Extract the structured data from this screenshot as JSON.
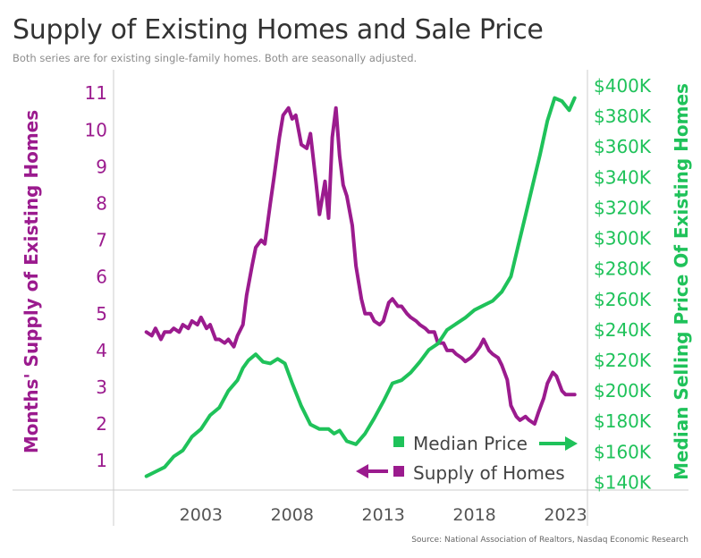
{
  "title": "Supply of Existing Homes and Sale Price",
  "subtitle": "Both series are for existing single-family homes. Both are seasonally adjusted.",
  "source": "Source: National Association of Realtors, Nasdaq Economic Research",
  "colors": {
    "supply": "#9b1b8e",
    "price": "#1fc25a",
    "axis": "#cccccc"
  },
  "chart_data": {
    "type": "line",
    "xlabel": "",
    "ylabel_left": "Months' Supply of Existing Homes",
    "ylabel_right": "Median Selling Price Of Existing Homes",
    "x_ticks": [
      2003,
      2008,
      2013,
      2018,
      2023
    ],
    "xlim": [
      1998.2,
      2024.2
    ],
    "y_left_ticks": [
      "1",
      "2",
      "3",
      "4",
      "5",
      "6",
      "7",
      "8",
      "9",
      "10",
      "11"
    ],
    "y_left_lim": [
      0.2,
      11.2
    ],
    "y_right_ticks": [
      "$140K",
      "$160K",
      "$180K",
      "$200K",
      "$220K",
      "$240K",
      "$260K",
      "$280K",
      "$300K",
      "$320K",
      "$340K",
      "$360K",
      "$380K",
      "$400K"
    ],
    "y_right_lim": [
      135000,
      400000
    ],
    "grid": false,
    "legend": [
      {
        "name": "Median Price",
        "axis": "right",
        "arrow": "right"
      },
      {
        "name": "Supply of Homes",
        "axis": "left",
        "arrow": "left"
      }
    ],
    "series": [
      {
        "name": "Supply of Homes",
        "axis": "left",
        "x": [
          2000.0,
          2000.3,
          2000.5,
          2000.8,
          2001.0,
          2001.3,
          2001.5,
          2001.8,
          2002.0,
          2002.3,
          2002.5,
          2002.8,
          2003.0,
          2003.3,
          2003.5,
          2003.8,
          2004.0,
          2004.3,
          2004.5,
          2004.8,
          2005.0,
          2005.3,
          2005.5,
          2005.8,
          2006.0,
          2006.3,
          2006.5,
          2006.8,
          2007.0,
          2007.3,
          2007.5,
          2007.8,
          2008.0,
          2008.2,
          2008.5,
          2008.8,
          2009.0,
          2009.3,
          2009.5,
          2009.8,
          2010.0,
          2010.2,
          2010.4,
          2010.6,
          2010.8,
          2011.0,
          2011.3,
          2011.5,
          2011.8,
          2012.0,
          2012.3,
          2012.5,
          2012.8,
          2013.0,
          2013.3,
          2013.5,
          2013.8,
          2014.0,
          2014.3,
          2014.5,
          2014.8,
          2015.0,
          2015.3,
          2015.5,
          2015.8,
          2016.0,
          2016.3,
          2016.5,
          2016.8,
          2017.0,
          2017.3,
          2017.5,
          2017.8,
          2018.0,
          2018.3,
          2018.5,
          2018.8,
          2019.0,
          2019.3,
          2019.5,
          2019.8,
          2020.0,
          2020.3,
          2020.5,
          2020.8,
          2021.0,
          2021.3,
          2021.5,
          2021.8,
          2022.0,
          2022.3,
          2022.5,
          2022.8,
          2023.0,
          2023.3,
          2023.5
        ],
        "values": [
          4.5,
          4.4,
          4.6,
          4.3,
          4.5,
          4.5,
          4.6,
          4.5,
          4.7,
          4.6,
          4.8,
          4.7,
          4.9,
          4.6,
          4.7,
          4.3,
          4.3,
          4.2,
          4.3,
          4.1,
          4.4,
          4.7,
          5.5,
          6.3,
          6.8,
          7.0,
          6.9,
          8.0,
          8.7,
          9.8,
          10.4,
          10.6,
          10.3,
          10.4,
          9.6,
          9.5,
          9.9,
          8.6,
          7.7,
          8.6,
          7.6,
          9.8,
          10.6,
          9.3,
          8.5,
          8.2,
          7.4,
          6.3,
          5.4,
          5.0,
          5.0,
          4.8,
          4.7,
          4.8,
          5.3,
          5.4,
          5.2,
          5.2,
          5.0,
          4.9,
          4.8,
          4.7,
          4.6,
          4.5,
          4.5,
          4.2,
          4.2,
          4.0,
          4.0,
          3.9,
          3.8,
          3.7,
          3.8,
          3.9,
          4.1,
          4.3,
          4.0,
          3.9,
          3.8,
          3.6,
          3.2,
          2.5,
          2.2,
          2.1,
          2.2,
          2.1,
          2.0,
          2.3,
          2.7,
          3.1,
          3.4,
          3.3,
          2.9,
          2.8,
          2.8,
          2.8
        ]
      },
      {
        "name": "Median Price",
        "axis": "right",
        "x": [
          2000.0,
          2000.5,
          2001.0,
          2001.5,
          2002.0,
          2002.5,
          2003.0,
          2003.5,
          2004.0,
          2004.5,
          2005.0,
          2005.3,
          2005.6,
          2006.0,
          2006.4,
          2006.8,
          2007.2,
          2007.6,
          2008.0,
          2008.5,
          2009.0,
          2009.5,
          2010.0,
          2010.3,
          2010.6,
          2011.0,
          2011.5,
          2012.0,
          2012.5,
          2013.0,
          2013.5,
          2014.0,
          2014.5,
          2015.0,
          2015.5,
          2016.0,
          2016.5,
          2017.0,
          2017.5,
          2018.0,
          2018.5,
          2019.0,
          2019.5,
          2020.0,
          2020.4,
          2020.8,
          2021.2,
          2021.6,
          2022.0,
          2022.4,
          2022.8,
          2023.2,
          2023.5
        ],
        "values": [
          144000,
          147000,
          150000,
          157000,
          161000,
          170000,
          175000,
          184000,
          189000,
          200000,
          207000,
          215000,
          220000,
          224000,
          219000,
          218000,
          221000,
          218000,
          205000,
          190000,
          178000,
          175000,
          175000,
          172000,
          174000,
          167000,
          165000,
          172000,
          182000,
          193000,
          205000,
          207000,
          212000,
          219000,
          227000,
          231000,
          240000,
          244000,
          248000,
          253000,
          256000,
          259000,
          265000,
          275000,
          295000,
          315000,
          335000,
          355000,
          377000,
          392000,
          390000,
          384000,
          392000
        ]
      }
    ]
  }
}
